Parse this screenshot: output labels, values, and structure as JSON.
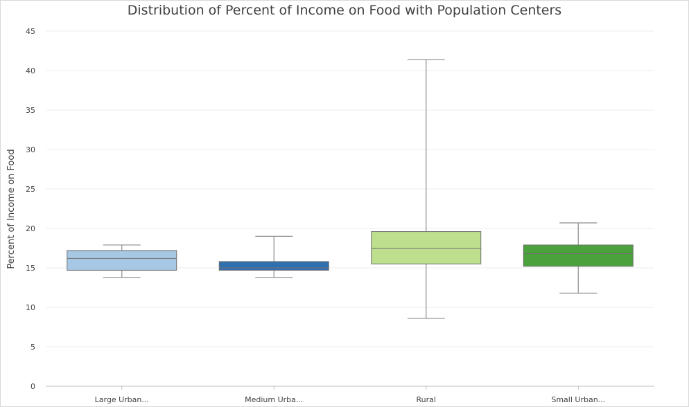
{
  "chart_data": {
    "type": "box",
    "title": "Distribution of Percent of Income on Food with Population Centers",
    "xlabel": "",
    "ylabel": "Percent of Income on Food",
    "ylim": [
      0,
      45
    ],
    "yticks": [
      "0",
      "5",
      "10",
      "15",
      "20",
      "25",
      "30",
      "35",
      "40",
      "45"
    ],
    "grid": true,
    "categories": [
      "Large Urban...",
      "Medium Urba...",
      "Rural",
      "Small Urban..."
    ],
    "boxes": [
      {
        "category": "Large Urban...",
        "min": 13.8,
        "q1": 14.7,
        "median": 16.2,
        "q3": 17.2,
        "max": 17.9,
        "color": "#a6c8e4"
      },
      {
        "category": "Medium Urba...",
        "min": 13.8,
        "q1": 14.7,
        "median": 15.0,
        "q3": 15.8,
        "max": 19.0,
        "color": "#2f6fb0"
      },
      {
        "category": "Rural",
        "min": 8.6,
        "q1": 15.5,
        "median": 17.5,
        "q3": 19.6,
        "max": 41.4,
        "color": "#bddf8e"
      },
      {
        "category": "Small Urban...",
        "min": 11.8,
        "q1": 15.2,
        "median": 16.8,
        "q3": 17.9,
        "max": 20.7,
        "color": "#4ba23c"
      }
    ]
  }
}
